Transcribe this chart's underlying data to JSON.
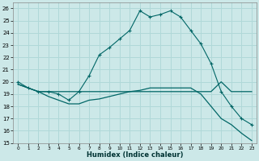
{
  "xlabel": "Humidex (Indice chaleur)",
  "ylabel": "",
  "xlim": [
    -0.5,
    23.5
  ],
  "ylim": [
    15,
    26.5
  ],
  "yticks": [
    15,
    16,
    17,
    18,
    19,
    20,
    21,
    22,
    23,
    24,
    25,
    26
  ],
  "xticks": [
    0,
    1,
    2,
    3,
    4,
    5,
    6,
    7,
    8,
    9,
    10,
    11,
    12,
    13,
    14,
    15,
    16,
    17,
    18,
    19,
    20,
    21,
    22,
    23
  ],
  "bg_color": "#cce8e8",
  "grid_color": "#b0d8d8",
  "line_color": "#006666",
  "series1_x": [
    0,
    1,
    2,
    3,
    4,
    5,
    6,
    7,
    8,
    9,
    10,
    11,
    12,
    13,
    14,
    15,
    16,
    17,
    18,
    19,
    20,
    21,
    22,
    23
  ],
  "series1_y": [
    20.0,
    19.5,
    19.2,
    19.2,
    19.0,
    18.5,
    19.2,
    20.5,
    22.2,
    22.8,
    23.5,
    24.2,
    25.8,
    25.3,
    25.5,
    25.8,
    25.3,
    24.2,
    23.1,
    21.5,
    19.2,
    18.0,
    17.0,
    16.5
  ],
  "series2_x": [
    0,
    1,
    2,
    3,
    4,
    5,
    6,
    7,
    8,
    9,
    10,
    11,
    12,
    13,
    14,
    15,
    16,
    17,
    18,
    19,
    20,
    21,
    22,
    23
  ],
  "series2_y": [
    19.8,
    19.5,
    19.2,
    19.2,
    19.2,
    19.2,
    19.2,
    19.2,
    19.2,
    19.2,
    19.2,
    19.2,
    19.2,
    19.2,
    19.2,
    19.2,
    19.2,
    19.2,
    19.2,
    19.2,
    20.0,
    19.2,
    19.2,
    19.2
  ],
  "series3_x": [
    0,
    1,
    2,
    3,
    4,
    5,
    6,
    7,
    8,
    9,
    10,
    11,
    12,
    13,
    14,
    15,
    16,
    17,
    18,
    19,
    20,
    21,
    22,
    23
  ],
  "series3_y": [
    19.8,
    19.5,
    19.2,
    18.8,
    18.5,
    18.2,
    18.2,
    18.5,
    18.6,
    18.8,
    19.0,
    19.2,
    19.3,
    19.5,
    19.5,
    19.5,
    19.5,
    19.5,
    19.0,
    18.0,
    17.0,
    16.5,
    15.8,
    15.2
  ]
}
